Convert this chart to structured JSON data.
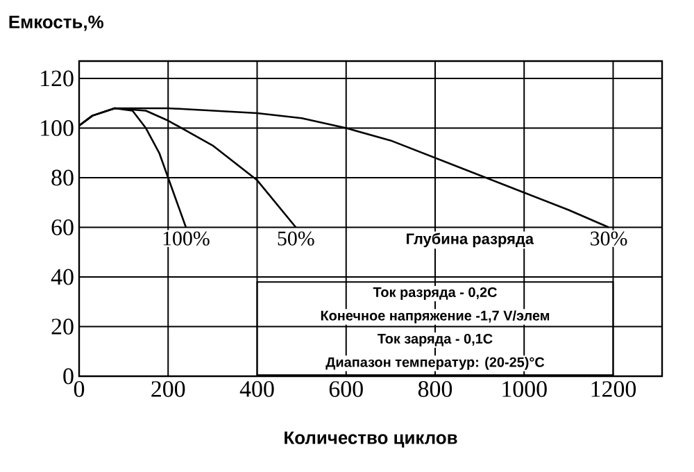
{
  "chart_data": {
    "type": "line",
    "xlabel": "Количество циклов",
    "ylabel": "Емкость,%",
    "legend_title": "Глубина разряда",
    "series": [
      {
        "name": "100%",
        "color": "#000000",
        "x": [
          0,
          30,
          80,
          120,
          150,
          180,
          200,
          240
        ],
        "values": [
          101,
          105,
          108,
          107,
          100,
          90,
          80,
          60
        ]
      },
      {
        "name": "50%",
        "color": "#000000",
        "x": [
          0,
          30,
          80,
          150,
          200,
          300,
          400,
          487
        ],
        "values": [
          101,
          105,
          108,
          107,
          103,
          93,
          79,
          60
        ]
      },
      {
        "name": "30%",
        "color": "#000000",
        "x": [
          0,
          30,
          80,
          200,
          400,
          500,
          600,
          700,
          800,
          900,
          1000,
          1100,
          1190
        ],
        "values": [
          101,
          105,
          108,
          108,
          106,
          104,
          100,
          95,
          88,
          81,
          74,
          67,
          60
        ]
      }
    ],
    "xlim": [
      0,
      1310
    ],
    "ylim": [
      0,
      127
    ],
    "xticks": [
      0,
      200,
      400,
      600,
      800,
      1000,
      1200
    ],
    "yticks": [
      0,
      20,
      40,
      60,
      80,
      100,
      120
    ],
    "grid": true,
    "marker": "none",
    "line_style": "solid",
    "annotations": [
      "Ток разряда  -  0,2C",
      "Конечное напряжение  -1,7 V/элем",
      "Ток заряда  -  0,1C",
      "Диапазон температур: (20-25)°C"
    ]
  }
}
